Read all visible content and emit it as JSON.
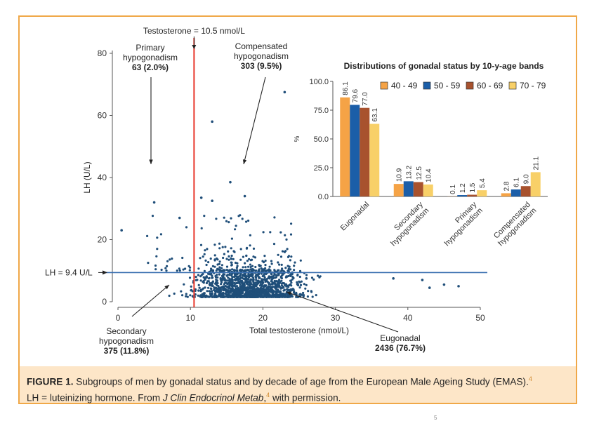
{
  "colors": {
    "frame": "#f0a848",
    "caption_bg": "#fde6c8",
    "point": "#1f4e79",
    "t_threshold_line": "#e8382c",
    "lh_threshold_line": "#3a6fb0",
    "band_40_49": "#f5a346",
    "band_50_59": "#1b5ea8",
    "band_60_69": "#a8522e",
    "band_70_79": "#f8d068"
  },
  "chart_data": [
    {
      "type": "scatter",
      "xlabel": "Total testosterone (nmol/L)",
      "ylabel": "LH (U/L)",
      "xlim": [
        0,
        50
      ],
      "ylim": [
        0,
        80
      ],
      "x_ticks": [
        0,
        10,
        20,
        30,
        40,
        50
      ],
      "y_ticks": [
        0,
        20,
        40,
        60,
        80
      ],
      "thresholds": {
        "testosterone": {
          "value": 10.5,
          "label": "Testosterone = 10.5 nmol/L"
        },
        "lh": {
          "value": 9.4,
          "label": "LH = 9.4 U/L"
        }
      },
      "groups": [
        {
          "title": "Primary hypogonadism",
          "lines": [
            "Primary",
            "hypogonadism",
            "63 (2.0%)"
          ]
        },
        {
          "title": "Compensated hypogonadism",
          "lines": [
            "Compensated",
            "hypogonadism",
            "303 (9.5%)"
          ]
        },
        {
          "title": "Secondary hypogonadism",
          "lines": [
            "Secondary",
            "hypogonadism",
            "375 (11.8%)"
          ]
        },
        {
          "title": "Eugonadal",
          "lines": [
            "Eugonadal",
            "2436 (76.7%)"
          ]
        }
      ],
      "outliers": [
        [
          23,
          67.5
        ],
        [
          13,
          58
        ],
        [
          15.5,
          38.5
        ],
        [
          5,
          32
        ],
        [
          11.5,
          33.5
        ],
        [
          13,
          32.5
        ],
        [
          17.5,
          34
        ],
        [
          0.5,
          23
        ],
        [
          8.5,
          27
        ],
        [
          26,
          7.5
        ],
        [
          42,
          7
        ],
        [
          45,
          5.5
        ],
        [
          47,
          5
        ],
        [
          43,
          4.5
        ],
        [
          38,
          7.5
        ]
      ]
    },
    {
      "type": "bar",
      "title": "Distributions of gonadal status by 10-y-age bands",
      "ylabel": "%",
      "ylim": [
        0,
        100
      ],
      "y_ticks": [
        "0.0",
        "25.0",
        "50.0",
        "75.0",
        "100.0"
      ],
      "categories": [
        "Eugonadal",
        "Secondary hypogonadism",
        "Primary hypogonadism",
        "Compensated hypogonadism"
      ],
      "category_lines": [
        [
          "Eugonadal"
        ],
        [
          "Secondary",
          "hypogonadism"
        ],
        [
          "Primary",
          "hypogonadism"
        ],
        [
          "Compensated",
          "hypogonadism"
        ]
      ],
      "series": [
        {
          "name": "40 - 49",
          "values": [
            86.1,
            10.9,
            0.1,
            2.8
          ],
          "labels": [
            "86.1",
            "10.9",
            "0.1",
            "2.8"
          ]
        },
        {
          "name": "50 - 59",
          "values": [
            79.6,
            13.2,
            1.2,
            6.1
          ],
          "labels": [
            "79.6",
            "13.2",
            "1.2",
            "6.1"
          ]
        },
        {
          "name": "60 - 69",
          "values": [
            77.0,
            12.5,
            1.5,
            9.0
          ],
          "labels": [
            "77.0",
            "12.5",
            "1.5",
            "9.0"
          ]
        },
        {
          "name": "70 - 79",
          "values": [
            63.1,
            10.4,
            5.4,
            21.1
          ],
          "labels": [
            "63.1",
            "10.4",
            "5.4",
            "21.1"
          ]
        }
      ],
      "legend": "top-right"
    }
  ],
  "caption": {
    "label": "FIGURE 1.",
    "text1": " Subgroups of men by gonadal status and by decade of age from the European Male Ageing Study (EMAS).",
    "ref": "4",
    "text2": "LH = luteinizing hormone. From ",
    "journal": "J Clin Endocrinol Metab",
    "ref2": "4",
    "text3": " with permission."
  },
  "footnote": "5"
}
